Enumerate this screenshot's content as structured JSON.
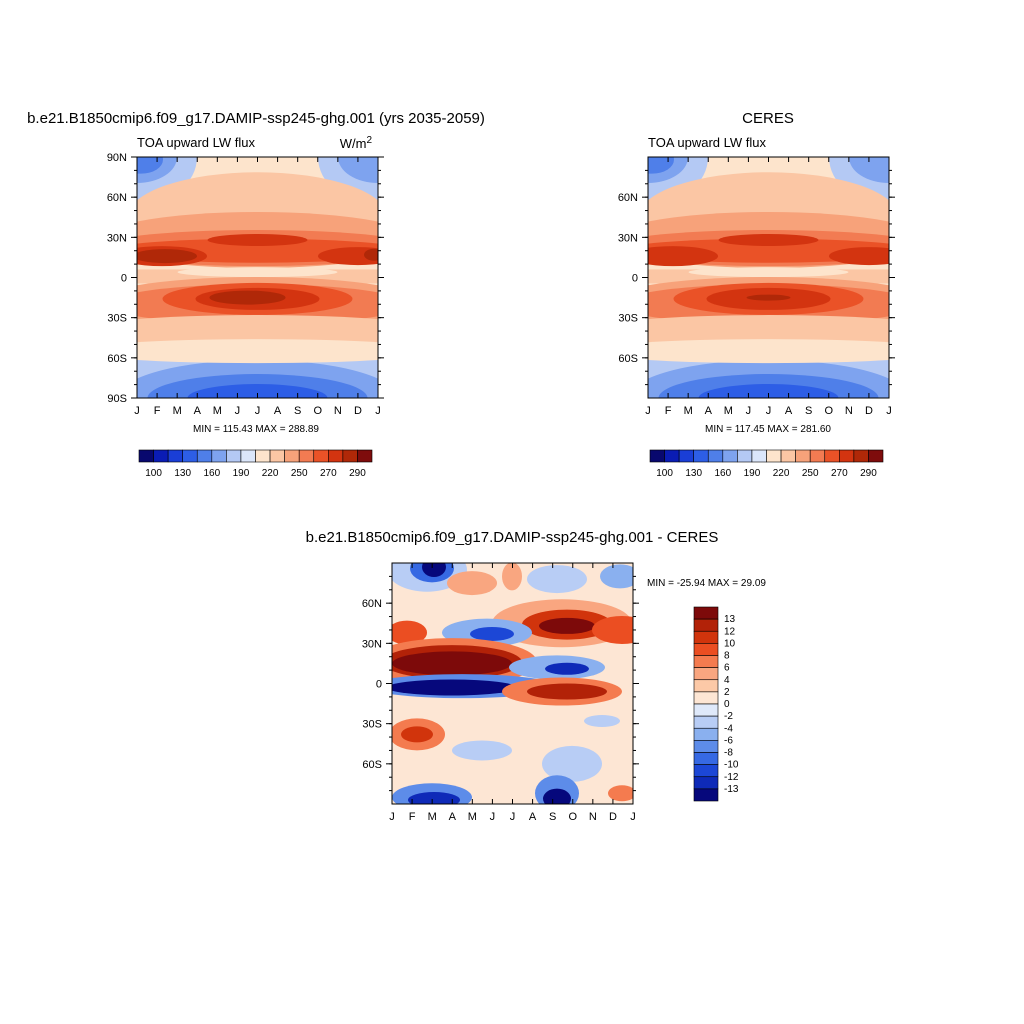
{
  "chart_data": [
    {
      "type": "heatmap",
      "title": "b.e21.B1850cmip6.f09_g17.DAMIP-ssp245-ghg.001 (yrs 2035-2059)",
      "left_subtitle": "TOA upward LW flux",
      "right_subtitle": "W/m",
      "units_superscript": "2",
      "x_tick_labels": [
        "J",
        "F",
        "M",
        "A",
        "M",
        "J",
        "J",
        "A",
        "S",
        "O",
        "N",
        "D",
        "J"
      ],
      "y_tick_labels": [
        "90N",
        "60N",
        "30N",
        "0",
        "30S",
        "60S",
        "90S"
      ],
      "y_tick_values": [
        90,
        60,
        30,
        0,
        -30,
        -60,
        -90
      ],
      "ylim": [
        -90,
        90
      ],
      "min_max_label": "MIN = 115.43 MAX = 288.89",
      "min": 115.43,
      "max": 288.89,
      "colorbar_labels": [
        "100",
        "130",
        "160",
        "190",
        "220",
        "250",
        "270",
        "290"
      ]
    },
    {
      "type": "heatmap",
      "title": "CERES",
      "left_subtitle": "TOA upward LW flux",
      "x_tick_labels": [
        "J",
        "F",
        "M",
        "A",
        "M",
        "J",
        "J",
        "A",
        "S",
        "O",
        "N",
        "D",
        "J"
      ],
      "y_tick_labels": [
        "60N",
        "30N",
        "0",
        "30S",
        "60S"
      ],
      "y_tick_values": [
        60,
        30,
        0,
        -30,
        -60
      ],
      "ylim": [
        -90,
        90
      ],
      "min_max_label": "MIN = 117.45 MAX = 281.60",
      "min": 117.45,
      "max": 281.6,
      "colorbar_labels": [
        "100",
        "130",
        "160",
        "190",
        "220",
        "250",
        "270",
        "290"
      ]
    },
    {
      "type": "heatmap",
      "title": "b.e21.B1850cmip6.f09_g17.DAMIP-ssp245-ghg.001 - CERES",
      "x_tick_labels": [
        "J",
        "F",
        "M",
        "A",
        "M",
        "J",
        "J",
        "A",
        "S",
        "O",
        "N",
        "D",
        "J"
      ],
      "y_tick_labels": [
        "60N",
        "30N",
        "0",
        "30S",
        "60S"
      ],
      "y_tick_values": [
        60,
        30,
        0,
        -30,
        -60
      ],
      "ylim": [
        -90,
        90
      ],
      "min_max_label": "MIN = -25.94 MAX =  29.09",
      "min": -25.94,
      "max": 29.09,
      "colorbar_labels": [
        "13",
        "12",
        "10",
        "8",
        "6",
        "4",
        "2",
        "0",
        "-2",
        "-4",
        "-6",
        "-8",
        "-10",
        "-12",
        "-13"
      ]
    }
  ],
  "colors": {
    "abs_scale": [
      "#08086e",
      "#0a1cb4",
      "#1a3ed6",
      "#2d5ee6",
      "#4f7fe9",
      "#7ea3ef",
      "#b4c9f4",
      "#dbe6fa",
      "#fde4cc",
      "#fbc6a4",
      "#f7a27a",
      "#f27b52",
      "#ea5227",
      "#d33410",
      "#b02808",
      "#7e0c0c"
    ],
    "diff_scale": [
      "#7d0a0a",
      "#b22208",
      "#d1340c",
      "#eb4e22",
      "#f47b4f",
      "#f9a680",
      "#fcc9a7",
      "#fde6d4",
      "#dfe9fa",
      "#b8cdf5",
      "#8ab0ef",
      "#5d8ce9",
      "#3669e3",
      "#1c47d6",
      "#0e2ab8",
      "#06087c"
    ]
  }
}
